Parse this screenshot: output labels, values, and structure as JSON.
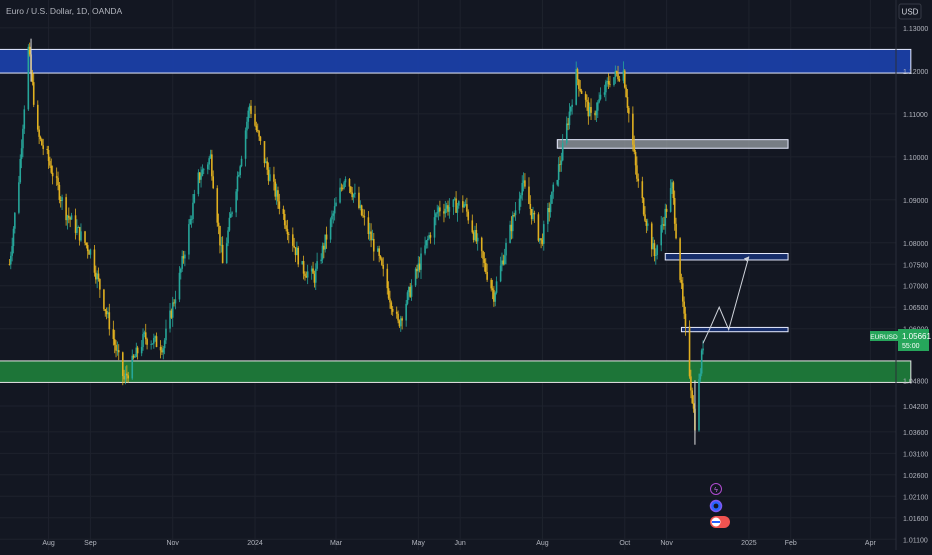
{
  "header": {
    "symbol_title": "Euro / U.S. Dollar, 1D, OANDA",
    "currency_button": "USD"
  },
  "colors": {
    "background": "#131722",
    "grid": "#1e222d",
    "candle_up": "#26a69a",
    "candle_down": "#e0b020",
    "blue_zone": "#1a3fa6",
    "green_zone": "#1e7a3a",
    "gray_zone": "#9aa0a6",
    "price_tag": "#26a65b",
    "projection": "#d0d4dc"
  },
  "chart_data": {
    "type": "candlestick",
    "symbol": "EURUSD",
    "timeframe": "1D",
    "ylim": [
      1.0085,
      1.1365
    ],
    "y_ticks": [
      "1.13000",
      "1.12000",
      "1.11000",
      "1.10000",
      "1.09000",
      "1.08000",
      "1.07500",
      "1.07000",
      "1.06500",
      "1.06000",
      "1.04800",
      "1.04200",
      "1.03600",
      "1.03100",
      "1.02600",
      "1.02100",
      "1.01600",
      "1.01100"
    ],
    "x_ticks": [
      "Aug",
      "Sep",
      "Nov",
      "2024",
      "Mar",
      "May",
      "Jun",
      "Aug",
      "Oct",
      "Nov",
      "2025",
      "Feb",
      "Apr"
    ],
    "last_price": {
      "label": "EURUSD",
      "price": "1.05661",
      "countdown": "55:00"
    },
    "price_path": [
      {
        "date": "2023-07-03",
        "close": 1.075
      },
      {
        "date": "2023-07-10",
        "close": 1.095
      },
      {
        "date": "2023-07-17",
        "close": 1.125
      },
      {
        "date": "2023-07-24",
        "close": 1.105
      },
      {
        "date": "2023-07-31",
        "close": 1.1
      },
      {
        "date": "2023-08-14",
        "close": 1.087
      },
      {
        "date": "2023-09-01",
        "close": 1.078
      },
      {
        "date": "2023-09-26",
        "close": 1.048
      },
      {
        "date": "2023-10-11",
        "close": 1.058
      },
      {
        "date": "2023-10-25",
        "close": 1.056
      },
      {
        "date": "2023-11-06",
        "close": 1.072
      },
      {
        "date": "2023-11-20",
        "close": 1.095
      },
      {
        "date": "2023-11-29",
        "close": 1.1
      },
      {
        "date": "2023-12-08",
        "close": 1.075
      },
      {
        "date": "2023-12-28",
        "close": 1.112
      },
      {
        "date": "2024-01-10",
        "close": 1.097
      },
      {
        "date": "2024-02-05",
        "close": 1.074
      },
      {
        "date": "2024-02-14",
        "close": 1.072
      },
      {
        "date": "2024-03-08",
        "close": 1.096
      },
      {
        "date": "2024-04-01",
        "close": 1.077
      },
      {
        "date": "2024-04-16",
        "close": 1.061
      },
      {
        "date": "2024-05-03",
        "close": 1.076
      },
      {
        "date": "2024-05-16",
        "close": 1.088
      },
      {
        "date": "2024-06-04",
        "close": 1.089
      },
      {
        "date": "2024-06-26",
        "close": 1.068
      },
      {
        "date": "2024-07-17",
        "close": 1.094
      },
      {
        "date": "2024-07-31",
        "close": 1.08
      },
      {
        "date": "2024-08-15",
        "close": 1.1
      },
      {
        "date": "2024-08-26",
        "close": 1.119
      },
      {
        "date": "2024-09-06",
        "close": 1.109
      },
      {
        "date": "2024-09-20",
        "close": 1.118
      },
      {
        "date": "2024-09-30",
        "close": 1.12
      },
      {
        "date": "2024-10-10",
        "close": 1.095
      },
      {
        "date": "2024-10-23",
        "close": 1.077
      },
      {
        "date": "2024-11-05",
        "close": 1.093
      },
      {
        "date": "2024-11-14",
        "close": 1.062
      },
      {
        "date": "2024-11-22",
        "close": 1.038
      },
      {
        "date": "2024-11-28",
        "close": 1.0566
      }
    ],
    "zones": [
      {
        "name": "blue-resistance-zone",
        "y_top": 1.125,
        "y_bottom": 1.1195,
        "x_from": "2023-06-20",
        "x_to": "2025-05-01",
        "color": "blue"
      },
      {
        "name": "gray-zone",
        "y_top": 1.104,
        "y_bottom": 1.102,
        "x_from": "2024-08-12",
        "x_to": "2025-01-30",
        "color": "gray"
      },
      {
        "name": "blue-zone-1078",
        "y_top": 1.0775,
        "y_bottom": 1.076,
        "x_from": "2024-10-31",
        "x_to": "2025-01-30",
        "color": "blue"
      },
      {
        "name": "blue-zone-1060",
        "y_top": 1.0603,
        "y_bottom": 1.0593,
        "x_from": "2024-11-12",
        "x_to": "2025-01-30",
        "color": "blue"
      },
      {
        "name": "green-support-zone",
        "y_top": 1.0525,
        "y_bottom": 1.0475,
        "x_from": "2023-06-20",
        "x_to": "2025-05-01",
        "color": "green"
      }
    ],
    "projection": [
      {
        "date": "2024-11-28",
        "price": 1.0566
      },
      {
        "date": "2024-12-03",
        "price": 1.06
      },
      {
        "date": "2024-12-10",
        "price": 1.065
      },
      {
        "date": "2024-12-17",
        "price": 1.0598
      },
      {
        "date": "2025-01-01",
        "price": 1.0768
      }
    ]
  }
}
